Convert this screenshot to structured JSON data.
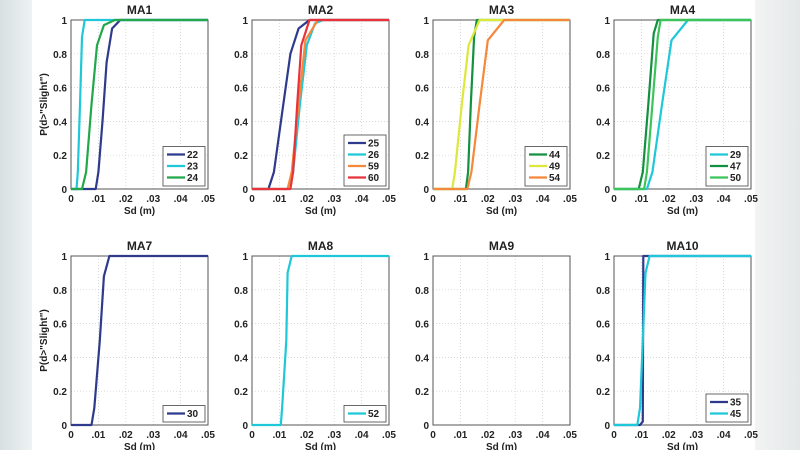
{
  "chart_data": [
    {
      "type": "line",
      "title": "MA1",
      "xlabel": "Sd (m)",
      "ylabel": "P(d>\"Slight\")",
      "xlim": [
        0,
        0.05
      ],
      "ylim": [
        0,
        1
      ],
      "grid": true,
      "legend": "bottom-right",
      "series": [
        {
          "name": "22",
          "color": "#2e3a8c",
          "points": [
            [
              0,
              0
            ],
            [
              0.009,
              0
            ],
            [
              0.01,
              0.1
            ],
            [
              0.0115,
              0.4
            ],
            [
              0.013,
              0.75
            ],
            [
              0.015,
              0.95
            ],
            [
              0.018,
              1
            ],
            [
              0.05,
              1
            ]
          ]
        },
        {
          "name": "23",
          "color": "#1ec8d8",
          "points": [
            [
              0,
              0
            ],
            [
              0.002,
              0
            ],
            [
              0.0025,
              0.1
            ],
            [
              0.0033,
              0.5
            ],
            [
              0.004,
              0.9
            ],
            [
              0.005,
              1
            ],
            [
              0.05,
              1
            ]
          ]
        },
        {
          "name": "24",
          "color": "#22a84a",
          "points": [
            [
              0,
              0
            ],
            [
              0.004,
              0
            ],
            [
              0.0055,
              0.1
            ],
            [
              0.0075,
              0.5
            ],
            [
              0.0095,
              0.85
            ],
            [
              0.012,
              0.97
            ],
            [
              0.016,
              1
            ],
            [
              0.05,
              1
            ]
          ]
        }
      ]
    },
    {
      "type": "line",
      "title": "MA2",
      "xlabel": "Sd (m)",
      "ylabel": "",
      "xlim": [
        0,
        0.05
      ],
      "ylim": [
        0,
        1
      ],
      "grid": true,
      "legend": "bottom-right",
      "series": [
        {
          "name": "25",
          "color": "#2e3a8c",
          "points": [
            [
              0,
              0
            ],
            [
              0.006,
              0
            ],
            [
              0.008,
              0.1
            ],
            [
              0.011,
              0.45
            ],
            [
              0.014,
              0.8
            ],
            [
              0.017,
              0.95
            ],
            [
              0.021,
              1
            ],
            [
              0.05,
              1
            ]
          ]
        },
        {
          "name": "26",
          "color": "#1ec8d8",
          "points": [
            [
              0,
              0
            ],
            [
              0.013,
              0
            ],
            [
              0.015,
              0.1
            ],
            [
              0.0175,
              0.5
            ],
            [
              0.02,
              0.85
            ],
            [
              0.023,
              0.98
            ],
            [
              0.026,
              1
            ],
            [
              0.05,
              1
            ]
          ]
        },
        {
          "name": "59",
          "color": "#f5883a",
          "points": [
            [
              0,
              0
            ],
            [
              0.013,
              0
            ],
            [
              0.0145,
              0.1
            ],
            [
              0.017,
              0.5
            ],
            [
              0.0195,
              0.88
            ],
            [
              0.024,
              1
            ],
            [
              0.05,
              1
            ]
          ]
        },
        {
          "name": "60",
          "color": "#e8323c",
          "points": [
            [
              0,
              0
            ],
            [
              0.014,
              0
            ],
            [
              0.015,
              0.1
            ],
            [
              0.0165,
              0.5
            ],
            [
              0.018,
              0.85
            ],
            [
              0.021,
              1
            ],
            [
              0.05,
              1
            ]
          ]
        }
      ]
    },
    {
      "type": "line",
      "title": "MA3",
      "xlabel": "Sd (m)",
      "ylabel": "",
      "xlim": [
        0,
        0.05
      ],
      "ylim": [
        0,
        1
      ],
      "grid": true,
      "legend": "bottom-right",
      "series": [
        {
          "name": "44",
          "color": "#139040",
          "points": [
            [
              0,
              0
            ],
            [
              0.012,
              0
            ],
            [
              0.0128,
              0.1
            ],
            [
              0.0138,
              0.5
            ],
            [
              0.015,
              0.9
            ],
            [
              0.016,
              1
            ],
            [
              0.05,
              1
            ]
          ]
        },
        {
          "name": "49",
          "color": "#dde83a",
          "points": [
            [
              0,
              0
            ],
            [
              0.007,
              0
            ],
            [
              0.008,
              0.1
            ],
            [
              0.0105,
              0.5
            ],
            [
              0.013,
              0.85
            ],
            [
              0.017,
              1
            ],
            [
              0.05,
              1
            ]
          ]
        },
        {
          "name": "54",
          "color": "#f5883a",
          "points": [
            [
              0,
              0
            ],
            [
              0.0125,
              0
            ],
            [
              0.014,
              0.1
            ],
            [
              0.017,
              0.5
            ],
            [
              0.02,
              0.88
            ],
            [
              0.026,
              1
            ],
            [
              0.05,
              1
            ]
          ]
        }
      ]
    },
    {
      "type": "line",
      "title": "MA4",
      "xlabel": "Sd (m)",
      "ylabel": "",
      "xlim": [
        0,
        0.05
      ],
      "ylim": [
        0,
        1
      ],
      "grid": true,
      "legend": "bottom-right",
      "series": [
        {
          "name": "29",
          "color": "#1ec8d8",
          "points": [
            [
              0,
              0
            ],
            [
              0.012,
              0
            ],
            [
              0.014,
              0.1
            ],
            [
              0.0175,
              0.5
            ],
            [
              0.021,
              0.88
            ],
            [
              0.027,
              1
            ],
            [
              0.05,
              1
            ]
          ]
        },
        {
          "name": "47",
          "color": "#139040",
          "points": [
            [
              0,
              0
            ],
            [
              0.009,
              0
            ],
            [
              0.0105,
              0.1
            ],
            [
              0.0125,
              0.5
            ],
            [
              0.0145,
              0.92
            ],
            [
              0.016,
              1
            ],
            [
              0.05,
              1
            ]
          ]
        },
        {
          "name": "50",
          "color": "#3cc45a",
          "points": [
            [
              0,
              0
            ],
            [
              0.011,
              0
            ],
            [
              0.012,
              0.1
            ],
            [
              0.014,
              0.5
            ],
            [
              0.016,
              0.9
            ],
            [
              0.017,
              1
            ],
            [
              0.05,
              1
            ]
          ]
        }
      ]
    },
    {
      "type": "line",
      "title": "MA7",
      "xlabel": "Sd (m)",
      "ylabel": "P(d>\"Slight\")",
      "xlim": [
        0,
        0.05
      ],
      "ylim": [
        0,
        1
      ],
      "grid": true,
      "legend": "bottom-right",
      "series": [
        {
          "name": "30",
          "color": "#2e3a8c",
          "points": [
            [
              0,
              0
            ],
            [
              0.0075,
              0
            ],
            [
              0.0085,
              0.1
            ],
            [
              0.0105,
              0.5
            ],
            [
              0.012,
              0.88
            ],
            [
              0.014,
              1
            ],
            [
              0.05,
              1
            ]
          ]
        }
      ]
    },
    {
      "type": "line",
      "title": "MA8",
      "xlabel": "Sd (m)",
      "ylabel": "",
      "xlim": [
        0,
        0.05
      ],
      "ylim": [
        0,
        1
      ],
      "grid": true,
      "legend": "bottom-right",
      "series": [
        {
          "name": "52",
          "color": "#1ec8d8",
          "points": [
            [
              0,
              0
            ],
            [
              0.0105,
              0
            ],
            [
              0.011,
              0.1
            ],
            [
              0.0125,
              0.5
            ],
            [
              0.013,
              0.9
            ],
            [
              0.0145,
              1
            ],
            [
              0.05,
              1
            ]
          ]
        }
      ]
    },
    {
      "type": "line",
      "title": "MA9",
      "xlabel": "Sd (m)",
      "ylabel": "",
      "xlim": [
        0,
        0.05
      ],
      "ylim": [
        0,
        1
      ],
      "grid": true,
      "legend": "none",
      "series": []
    },
    {
      "type": "line",
      "title": "MA10",
      "xlabel": "Sd (m)",
      "ylabel": "",
      "xlim": [
        0,
        0.05
      ],
      "ylim": [
        0,
        1
      ],
      "grid": true,
      "legend": "bottom-right",
      "series": [
        {
          "name": "35",
          "color": "#2e3a8c",
          "points": [
            [
              0,
              0
            ],
            [
              0.0095,
              0
            ],
            [
              0.0105,
              0.02
            ],
            [
              0.0107,
              1
            ],
            [
              0.05,
              1
            ]
          ]
        },
        {
          "name": "45",
          "color": "#1ec8d8",
          "points": [
            [
              0,
              0
            ],
            [
              0.0085,
              0
            ],
            [
              0.0095,
              0.1
            ],
            [
              0.0105,
              0.5
            ],
            [
              0.0115,
              0.9
            ],
            [
              0.013,
              1
            ],
            [
              0.05,
              1
            ]
          ]
        }
      ]
    }
  ],
  "ticks": {
    "x": [
      "0",
      ".01",
      ".02",
      ".03",
      ".04",
      ".05"
    ],
    "y": [
      "0",
      "0.2",
      "0.4",
      "0.6",
      "0.8",
      "1"
    ]
  }
}
